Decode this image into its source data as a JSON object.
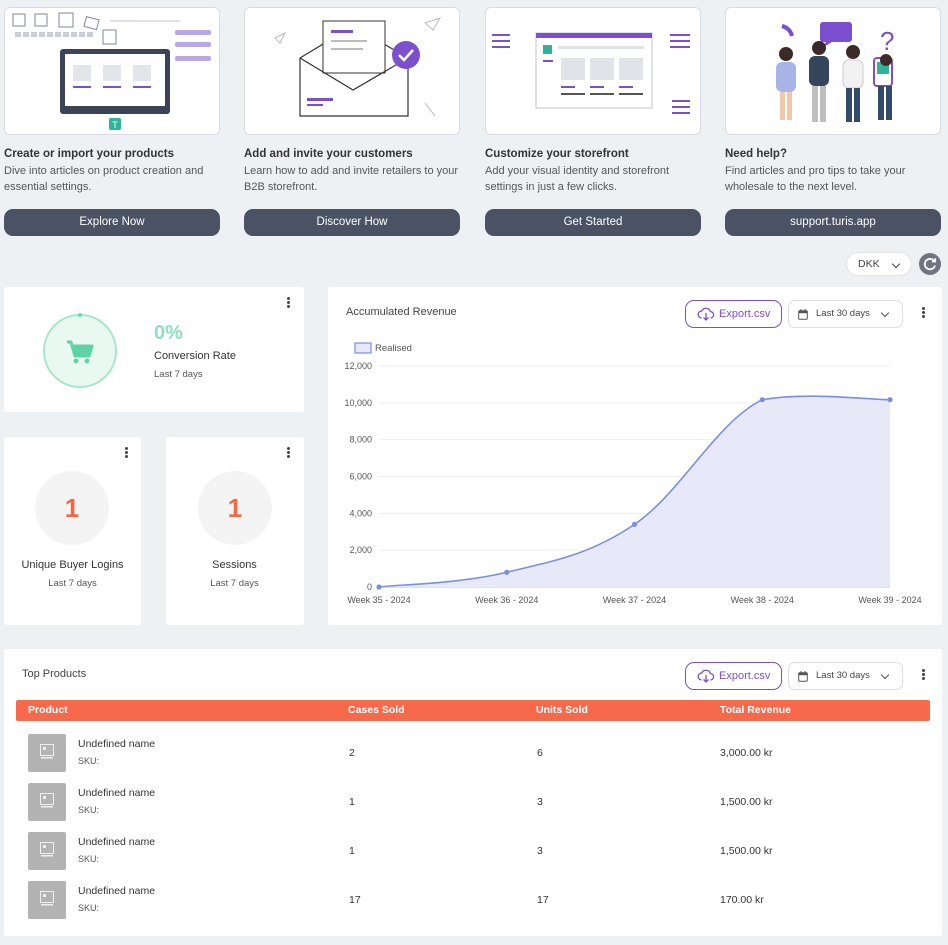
{
  "onboarding": [
    {
      "title": "Create or import your products",
      "desc": "Dive into articles on product creation and essential settings.",
      "button": "Explore Now"
    },
    {
      "title": "Add and invite your customers",
      "desc": "Learn how to add and invite retailers to your B2B storefront.",
      "button": "Discover How"
    },
    {
      "title": "Customize your storefront",
      "desc": "Add your visual identity and storefront settings in just a few clicks.",
      "button": "Get Started"
    },
    {
      "title": "Need help?",
      "desc": "Find articles and pro tips to take your wholesale to the next level.",
      "button": "support.turis.app"
    }
  ],
  "currency": "DKK",
  "conversion": {
    "value": "0%",
    "label": "Conversion Rate",
    "period": "Last 7 days"
  },
  "logins": {
    "value": "1",
    "label": "Unique Buyer Logins",
    "period": "Last 7 days"
  },
  "sessions": {
    "value": "1",
    "label": "Sessions",
    "period": "Last 7 days"
  },
  "revenue": {
    "title": "Accumulated Revenue",
    "export": "Export.csv",
    "range": "Last 30 days"
  },
  "chart_data": {
    "type": "area",
    "title": "Accumulated Revenue",
    "categories": [
      "Week 35 - 2024",
      "Week 36 - 2024",
      "Week 37 - 2024",
      "Week 38 - 2024",
      "Week 39 - 2024"
    ],
    "series": [
      {
        "name": "Realised",
        "values": [
          0,
          800,
          3400,
          10170,
          10170
        ]
      }
    ],
    "ylim": [
      0,
      12000
    ],
    "yticks": [
      "0",
      "2,000",
      "4,000",
      "6,000",
      "8,000",
      "10,000",
      "12,000"
    ],
    "grid": true,
    "legend": "top-left",
    "color": "#7b8fe0"
  },
  "top_products": {
    "title": "Top Products",
    "export": "Export.csv",
    "range": "Last 30 days",
    "columns": [
      "Product",
      "Cases Sold",
      "Units Sold",
      "Total Revenue"
    ],
    "rows": [
      {
        "name": "Undefined name",
        "sku": "SKU:",
        "cases": "2",
        "units": "6",
        "revenue": "3,000.00 kr"
      },
      {
        "name": "Undefined name",
        "sku": "SKU:",
        "cases": "1",
        "units": "3",
        "revenue": "1,500.00 kr"
      },
      {
        "name": "Undefined name",
        "sku": "SKU:",
        "cases": "1",
        "units": "3",
        "revenue": "1,500.00 kr"
      },
      {
        "name": "Undefined name",
        "sku": "SKU:",
        "cases": "17",
        "units": "17",
        "revenue": "170.00 kr"
      }
    ]
  },
  "colors": {
    "accent": "#7c4fcf",
    "orange": "#f7694b",
    "teal": "#6ddbb1",
    "button": "#4a5263"
  }
}
